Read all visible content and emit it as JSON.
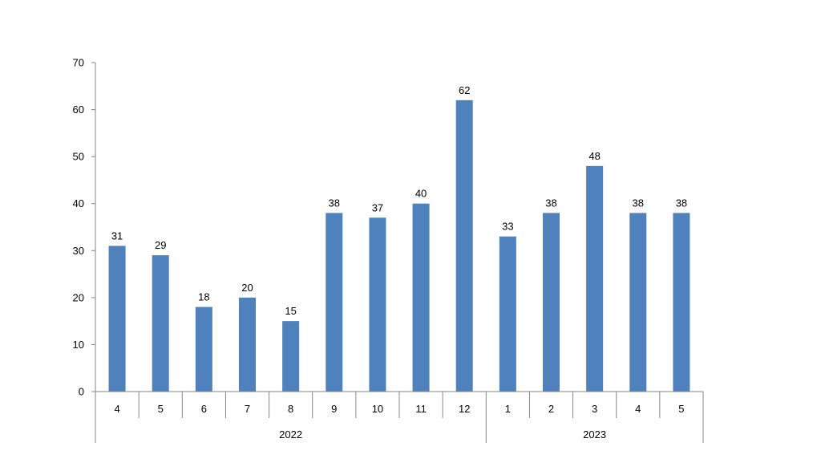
{
  "chart_data": {
    "type": "bar",
    "title": "",
    "xlabel": "",
    "ylabel": "",
    "ylim": [
      0,
      70
    ],
    "yticks": [
      0,
      10,
      20,
      30,
      40,
      50,
      60,
      70
    ],
    "grid": false,
    "legend": "none",
    "bar_color": "#4f81bd",
    "categories": [
      "4",
      "5",
      "6",
      "7",
      "8",
      "9",
      "10",
      "11",
      "12",
      "1",
      "2",
      "3",
      "4",
      "5"
    ],
    "values": [
      31,
      29,
      18,
      20,
      15,
      38,
      37,
      40,
      62,
      33,
      38,
      48,
      38,
      38
    ],
    "groups": [
      {
        "label": "2022",
        "count": 9
      },
      {
        "label": "2023",
        "count": 5
      }
    ]
  }
}
